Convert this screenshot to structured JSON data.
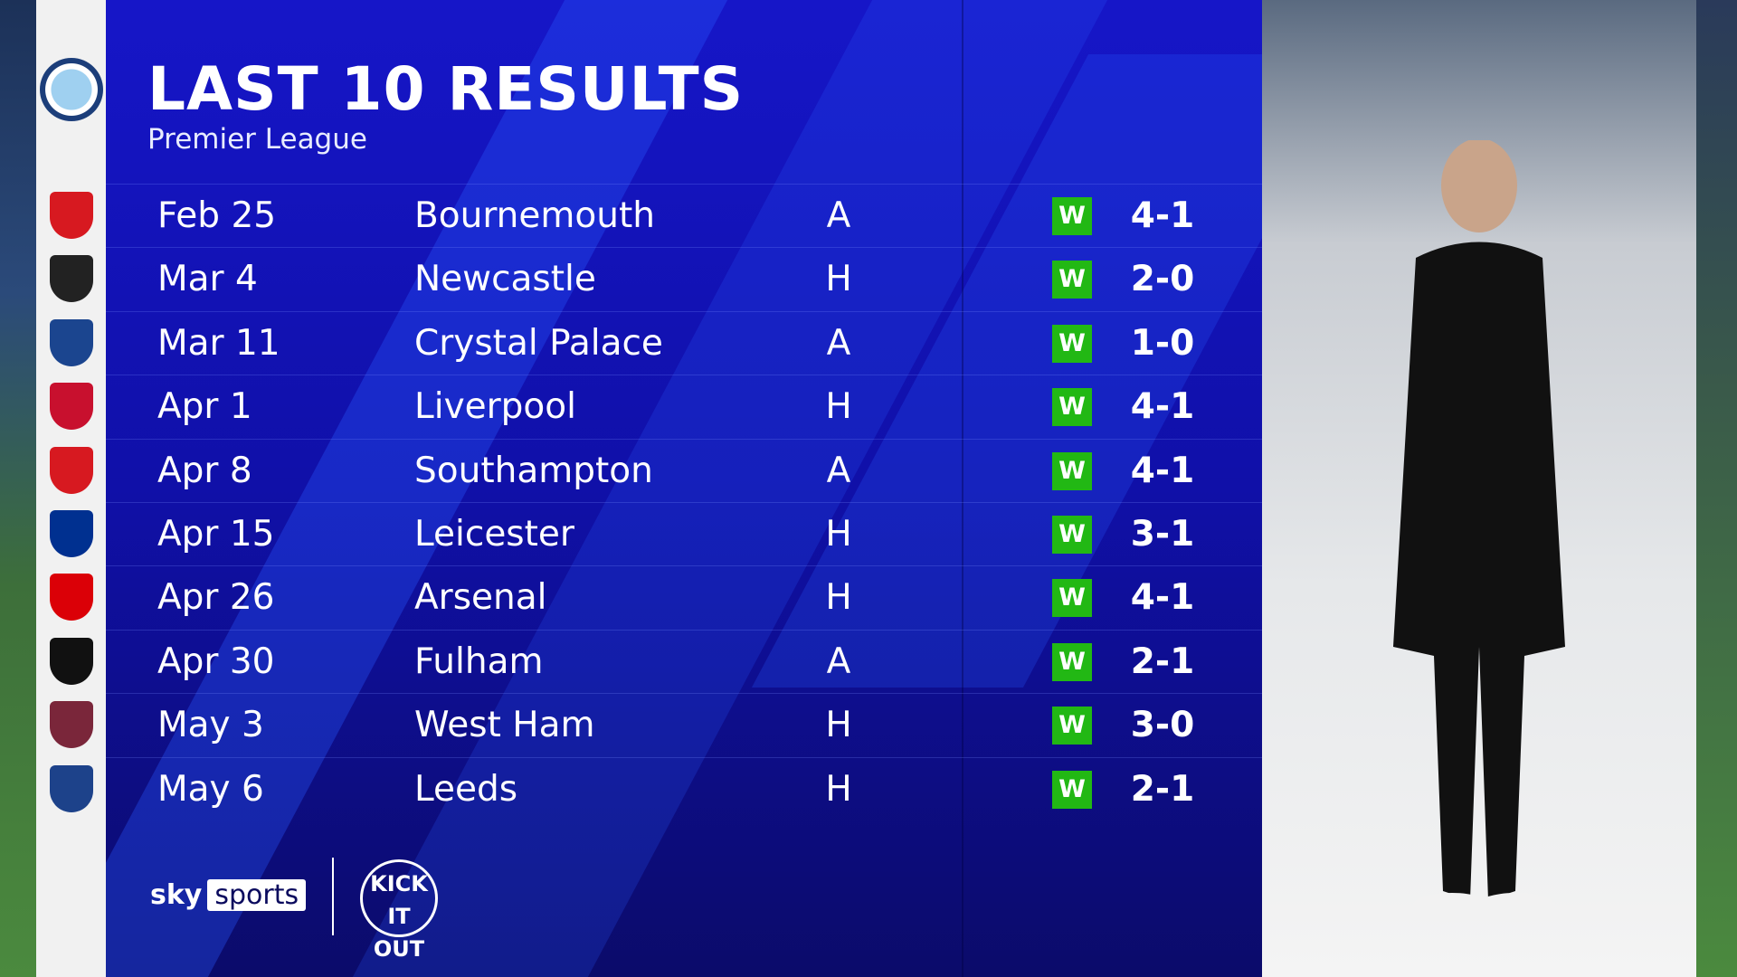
{
  "header": {
    "title": "LAST 10 RESULTS",
    "subtitle": "Premier League",
    "team_crest": "manchester-city-crest"
  },
  "results": [
    {
      "date": "Feb 25",
      "opponent": "Bournemouth",
      "venue": "A",
      "result": "W",
      "score": "4-1",
      "crest_color": "#d71920"
    },
    {
      "date": "Mar 4",
      "opponent": "Newcastle",
      "venue": "H",
      "result": "W",
      "score": "2-0",
      "crest_color": "#222222"
    },
    {
      "date": "Mar 11",
      "opponent": "Crystal Palace",
      "venue": "A",
      "result": "W",
      "score": "1-0",
      "crest_color": "#1b458f"
    },
    {
      "date": "Apr 1",
      "opponent": "Liverpool",
      "venue": "H",
      "result": "W",
      "score": "4-1",
      "crest_color": "#c8102e"
    },
    {
      "date": "Apr 8",
      "opponent": "Southampton",
      "venue": "A",
      "result": "W",
      "score": "4-1",
      "crest_color": "#d71920"
    },
    {
      "date": "Apr 15",
      "opponent": "Leicester",
      "venue": "H",
      "result": "W",
      "score": "3-1",
      "crest_color": "#003090"
    },
    {
      "date": "Apr 26",
      "opponent": "Arsenal",
      "venue": "H",
      "result": "W",
      "score": "4-1",
      "crest_color": "#db0007"
    },
    {
      "date": "Apr 30",
      "opponent": "Fulham",
      "venue": "A",
      "result": "W",
      "score": "2-1",
      "crest_color": "#111111"
    },
    {
      "date": "May 3",
      "opponent": "West Ham",
      "venue": "H",
      "result": "W",
      "score": "3-0",
      "crest_color": "#7a263a"
    },
    {
      "date": "May 6",
      "opponent": "Leeds",
      "venue": "H",
      "result": "W",
      "score": "2-1",
      "crest_color": "#1d428a"
    }
  ],
  "colors": {
    "win": "#22b814",
    "panel": "#1414b8"
  },
  "footer": {
    "brand_sky": "sky",
    "brand_sports": "sports",
    "partner": "KICK IT OUT"
  }
}
